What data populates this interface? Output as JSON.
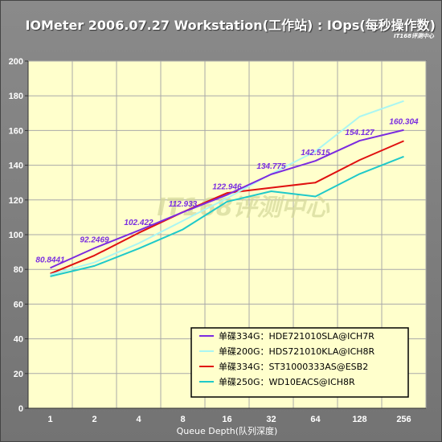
{
  "title": "IOMeter 2006.07.27 Workstation(工作站) : IOps(每秒操作数)",
  "watermark_small": "IT168评测中心",
  "watermark_large": "IT168评测中心",
  "colors": {
    "background": "#7b7b7b",
    "plot": "#ffffcc",
    "grid": "#a9a9a9"
  },
  "chart_data": {
    "type": "line",
    "title": "IOMeter 2006.07.27 Workstation(工作站) : IOps(每秒操作数)",
    "xlabel": "Queue Depth(队列深度)",
    "ylabel": "",
    "categories": [
      "1",
      "2",
      "4",
      "8",
      "16",
      "32",
      "64",
      "128",
      "256"
    ],
    "ylim": [
      0,
      200
    ],
    "yticks": [
      0,
      20,
      40,
      60,
      80,
      100,
      120,
      140,
      160,
      180,
      200
    ],
    "grid": true,
    "legend_position": "bottom-right",
    "series": [
      {
        "name": "单碟334G：HDE721010SLA@ICH7R",
        "color": "#7b2be0",
        "values": [
          80.8441,
          92.2469,
          102.422,
          112.933,
          122.946,
          134.775,
          142.515,
          154.127,
          160.304
        ],
        "labels": [
          "80.8441",
          "92.2469",
          "102.422",
          "112.933",
          "122.946",
          "134.775",
          "142.515",
          "154.127",
          "160.304"
        ]
      },
      {
        "name": "单碟200G：HDS721010KLA@ICH8R",
        "color": "#aaf6f2",
        "values": [
          77,
          84,
          95,
          108,
          121,
          135,
          148,
          168,
          177
        ]
      },
      {
        "name": "单碟334G：ST31000333AS@ESB2",
        "color": "#e01010",
        "values": [
          77.5,
          88,
          101,
          113,
          124,
          127,
          130,
          143,
          154
        ]
      },
      {
        "name": "单碟250G：WD10EACS@ICH8R",
        "color": "#1fc9c9",
        "values": [
          76,
          82,
          92,
          103,
          119,
          125,
          122,
          135,
          145
        ]
      }
    ]
  }
}
